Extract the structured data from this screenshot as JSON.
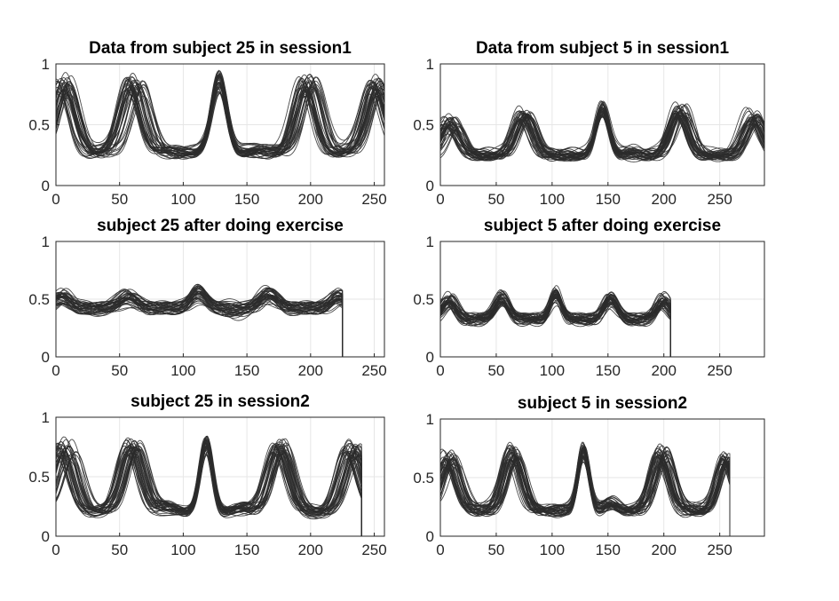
{
  "figure": {
    "trace_color": "#2b2b2b"
  },
  "chart_data": [
    {
      "type": "line",
      "title": "Data from subject 25 in session1",
      "xlim": [
        0,
        258
      ],
      "ylim": [
        0,
        1
      ],
      "xticks": [
        0,
        50,
        100,
        150,
        200,
        250
      ],
      "yticks": [
        0,
        0.5,
        1
      ],
      "grid": true,
      "n_traces": 40,
      "signal_end": 258,
      "baseline": 0.28,
      "peaks": [
        {
          "x": 6,
          "height": 0.88,
          "width": 8,
          "spread": 6
        },
        {
          "x": 62,
          "height": 0.9,
          "width": 8,
          "spread": 7
        },
        {
          "x": 128,
          "height": 0.92,
          "width": 6,
          "spread": 1
        },
        {
          "x": 158,
          "height": 0.31,
          "width": 8,
          "spread": 2
        },
        {
          "x": 198,
          "height": 0.9,
          "width": 8,
          "spread": 7
        },
        {
          "x": 252,
          "height": 0.88,
          "width": 8,
          "spread": 6
        }
      ]
    },
    {
      "type": "line",
      "title": "Data from subject 5 in session1",
      "xlim": [
        0,
        290
      ],
      "ylim": [
        0,
        1
      ],
      "xticks": [
        0,
        50,
        100,
        150,
        200,
        250
      ],
      "yticks": [
        0,
        0.5,
        1
      ],
      "grid": true,
      "n_traces": 40,
      "signal_end": 290,
      "baseline": 0.25,
      "peaks": [
        {
          "x": 10,
          "height": 0.55,
          "width": 8,
          "spread": 7
        },
        {
          "x": 75,
          "height": 0.62,
          "width": 8,
          "spread": 6
        },
        {
          "x": 145,
          "height": 0.68,
          "width": 6,
          "spread": 1
        },
        {
          "x": 170,
          "height": 0.29,
          "width": 7,
          "spread": 2
        },
        {
          "x": 215,
          "height": 0.65,
          "width": 8,
          "spread": 6
        },
        {
          "x": 280,
          "height": 0.6,
          "width": 8,
          "spread": 7
        }
      ]
    },
    {
      "type": "line",
      "title": "subject 25 after doing exercise",
      "xlim": [
        0,
        258
      ],
      "ylim": [
        0,
        1
      ],
      "xticks": [
        0,
        50,
        100,
        150,
        200,
        250
      ],
      "yticks": [
        0,
        0.5,
        1
      ],
      "grid": true,
      "n_traces": 40,
      "signal_end": 225,
      "baseline": 0.42,
      "peaks": [
        {
          "x": 5,
          "height": 0.55,
          "width": 6,
          "spread": 3
        },
        {
          "x": 57,
          "height": 0.55,
          "width": 7,
          "spread": 3
        },
        {
          "x": 112,
          "height": 0.6,
          "width": 6,
          "spread": 1
        },
        {
          "x": 140,
          "height": 0.44,
          "width": 7,
          "spread": 2
        },
        {
          "x": 168,
          "height": 0.58,
          "width": 7,
          "spread": 3
        },
        {
          "x": 222,
          "height": 0.55,
          "width": 6,
          "spread": 3
        }
      ]
    },
    {
      "type": "line",
      "title": "subject 5 after doing exercise",
      "xlim": [
        0,
        290
      ],
      "ylim": [
        0,
        1
      ],
      "xticks": [
        0,
        50,
        100,
        150,
        200,
        250
      ],
      "yticks": [
        0,
        0.5,
        1
      ],
      "grid": true,
      "n_traces": 40,
      "signal_end": 206,
      "baseline": 0.33,
      "peaks": [
        {
          "x": 8,
          "height": 0.52,
          "width": 6,
          "spread": 3
        },
        {
          "x": 55,
          "height": 0.55,
          "width": 6,
          "spread": 2
        },
        {
          "x": 103,
          "height": 0.58,
          "width": 5,
          "spread": 1
        },
        {
          "x": 152,
          "height": 0.55,
          "width": 6,
          "spread": 2
        },
        {
          "x": 200,
          "height": 0.52,
          "width": 6,
          "spread": 3
        }
      ]
    },
    {
      "type": "line",
      "title": "subject 25 in session2",
      "xlim": [
        0,
        258
      ],
      "ylim": [
        0,
        1
      ],
      "xticks": [
        0,
        50,
        100,
        150,
        200,
        250
      ],
      "yticks": [
        0,
        0.5,
        1
      ],
      "grid": true,
      "n_traces": 40,
      "signal_end": 240,
      "baseline": 0.2,
      "peaks": [
        {
          "x": 8,
          "height": 0.78,
          "width": 8,
          "spread": 9
        },
        {
          "x": 60,
          "height": 0.8,
          "width": 8,
          "spread": 6
        },
        {
          "x": 88,
          "height": 0.26,
          "width": 7,
          "spread": 3
        },
        {
          "x": 118,
          "height": 0.82,
          "width": 5,
          "spread": 1
        },
        {
          "x": 145,
          "height": 0.25,
          "width": 7,
          "spread": 3
        },
        {
          "x": 176,
          "height": 0.8,
          "width": 8,
          "spread": 6
        },
        {
          "x": 232,
          "height": 0.78,
          "width": 8,
          "spread": 7
        }
      ]
    },
    {
      "type": "line",
      "title": "subject 5 in session2",
      "xlim": [
        0,
        290
      ],
      "ylim": [
        0,
        1
      ],
      "xticks": [
        0,
        50,
        100,
        150,
        200,
        250
      ],
      "yticks": [
        0,
        0.5,
        1
      ],
      "grid": true,
      "n_traces": 40,
      "signal_end": 259,
      "baseline": 0.22,
      "peaks": [
        {
          "x": 8,
          "height": 0.7,
          "width": 8,
          "spread": 7
        },
        {
          "x": 65,
          "height": 0.75,
          "width": 8,
          "spread": 6
        },
        {
          "x": 128,
          "height": 0.78,
          "width": 5,
          "spread": 1
        },
        {
          "x": 152,
          "height": 0.3,
          "width": 6,
          "spread": 2
        },
        {
          "x": 198,
          "height": 0.75,
          "width": 8,
          "spread": 6
        },
        {
          "x": 255,
          "height": 0.7,
          "width": 7,
          "spread": 4
        }
      ]
    }
  ]
}
